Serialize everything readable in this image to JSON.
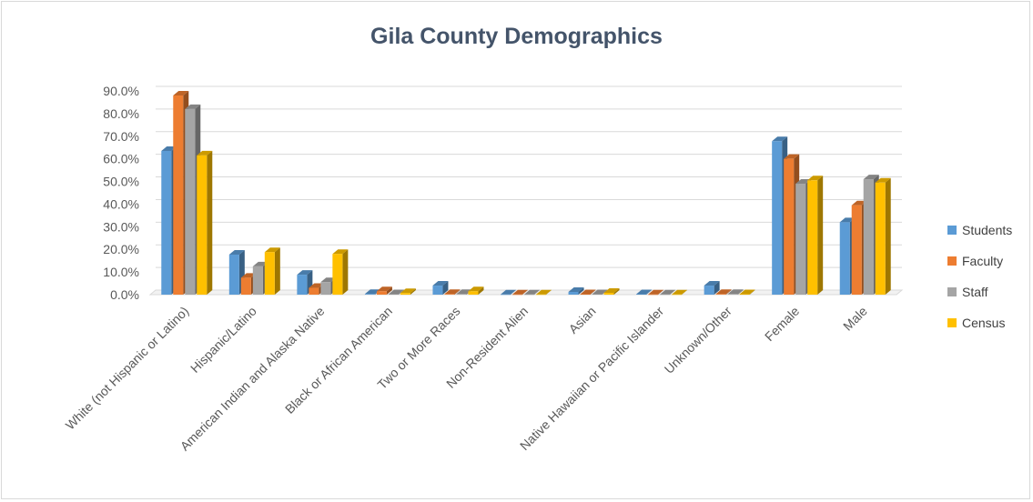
{
  "chart_data": {
    "type": "bar",
    "title": "Gila County Demographics",
    "categories": [
      "White (not Hispanic or Latino)",
      "Hispanic/Latino",
      "American Indian and Alaska Native",
      "Black or African American",
      "Two or More Races",
      "Non-Resident Alien",
      "Asian",
      "Native Hawaiian or Pacific Islander",
      "Unknown/Other",
      "Female",
      "Male"
    ],
    "series": [
      {
        "name": "Students",
        "color": "#5b9bd5",
        "values": [
          63.5,
          17.7,
          8.8,
          0.3,
          4.0,
          0.1,
          1.2,
          0.2,
          4.0,
          67.8,
          32.0
        ]
      },
      {
        "name": "Faculty",
        "color": "#ed7d31",
        "values": [
          88.0,
          7.5,
          3.0,
          1.5,
          0.3,
          0.1,
          0.2,
          0.1,
          0.3,
          60.0,
          39.5
        ]
      },
      {
        "name": "Staff",
        "color": "#a5a5a5",
        "values": [
          82.0,
          12.5,
          5.5,
          0.2,
          0.3,
          0.1,
          0.2,
          0.1,
          0.3,
          49.0,
          51.0
        ]
      },
      {
        "name": "Census",
        "color": "#ffc000",
        "values": [
          61.5,
          18.8,
          18.0,
          0.7,
          1.5,
          0.1,
          0.8,
          0.1,
          0.2,
          50.5,
          49.5
        ]
      }
    ],
    "yticks": [
      "0.0%",
      "10.0%",
      "20.0%",
      "30.0%",
      "40.0%",
      "50.0%",
      "60.0%",
      "70.0%",
      "80.0%",
      "90.0%"
    ],
    "ylim": [
      0,
      90
    ],
    "grid": true,
    "legend_position": "right",
    "bar_style": "3d-clustered-column"
  }
}
